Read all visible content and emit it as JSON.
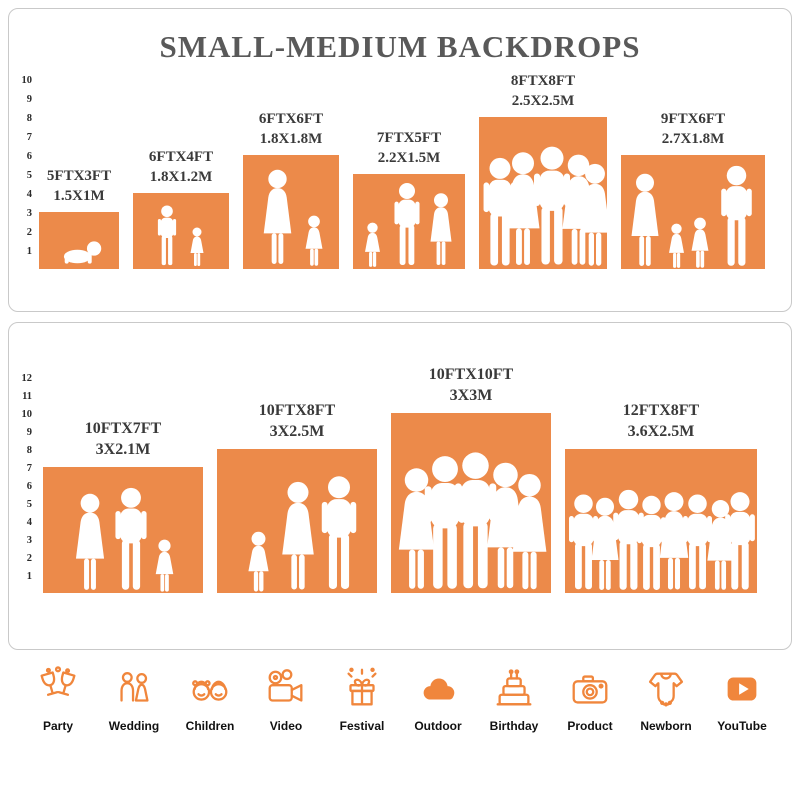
{
  "title": "SMALL-MEDIUM BACKDROPS",
  "colors": {
    "backdrop_orange": "#EC8A4A",
    "icon_orange": "#F0863C",
    "title_gray": "#595959",
    "label_gray": "#3a3a3a"
  },
  "panel_small_medium": {
    "ruler_numbers": [
      "1",
      "2",
      "3",
      "4",
      "5",
      "6",
      "7",
      "8",
      "9",
      "10"
    ],
    "bars": [
      {
        "size_ft": "5FTX3FT",
        "size_m": "1.5X1M",
        "width_ft": 5,
        "height_ft": 3
      },
      {
        "size_ft": "6FTX4FT",
        "size_m": "1.8X1.2M",
        "width_ft": 6,
        "height_ft": 4
      },
      {
        "size_ft": "6FTX6FT",
        "size_m": "1.8X1.8M",
        "width_ft": 6,
        "height_ft": 6
      },
      {
        "size_ft": "7FTX5FT",
        "size_m": "2.2X1.5M",
        "width_ft": 7,
        "height_ft": 5
      },
      {
        "size_ft": "8FTX8FT",
        "size_m": "2.5X2.5M",
        "width_ft": 8,
        "height_ft": 8
      },
      {
        "size_ft": "9FTX6FT",
        "size_m": "2.7X1.8M",
        "width_ft": 9,
        "height_ft": 6
      }
    ]
  },
  "panel_large": {
    "ruler_numbers": [
      "1",
      "2",
      "3",
      "4",
      "5",
      "6",
      "7",
      "8",
      "9",
      "10",
      "11",
      "12"
    ],
    "bars": [
      {
        "size_ft": "10FTX7FT",
        "size_m": "3X2.1M",
        "width_ft": 10,
        "height_ft": 7
      },
      {
        "size_ft": "10FTX8FT",
        "size_m": "3X2.5M",
        "width_ft": 10,
        "height_ft": 8
      },
      {
        "size_ft": "10FTX10FT",
        "size_m": "3X3M",
        "width_ft": 10,
        "height_ft": 10
      },
      {
        "size_ft": "12FTX8FT",
        "size_m": "3.6X2.5M",
        "width_ft": 12,
        "height_ft": 8
      }
    ]
  },
  "categories": [
    {
      "label": "Party",
      "icon": "party-drinks-icon"
    },
    {
      "label": "Wedding",
      "icon": "wedding-couple-icon"
    },
    {
      "label": "Children",
      "icon": "children-faces-icon"
    },
    {
      "label": "Video",
      "icon": "video-camera-icon"
    },
    {
      "label": "Festival",
      "icon": "gift-box-icon"
    },
    {
      "label": "Outdoor",
      "icon": "cloud-icon"
    },
    {
      "label": "Birthday",
      "icon": "birthday-cake-icon"
    },
    {
      "label": "Product",
      "icon": "photo-camera-icon"
    },
    {
      "label": "Newborn",
      "icon": "baby-onesie-icon"
    },
    {
      "label": "YouTube",
      "icon": "play-button-icon"
    }
  ]
}
